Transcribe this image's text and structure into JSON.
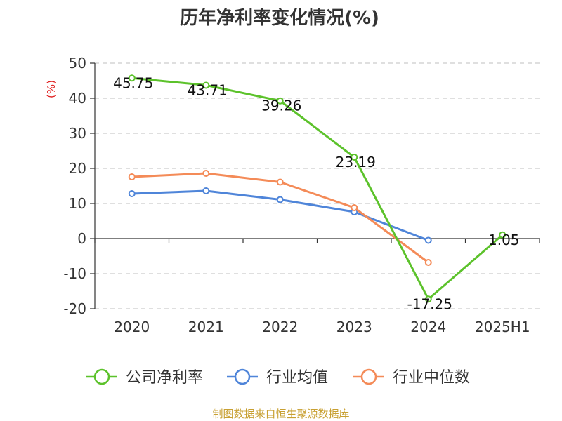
{
  "chart_data": {
    "type": "line",
    "title": "历年净利率变化情况(%)",
    "ylabel": "(%)",
    "xlabel": "",
    "categories": [
      "2020",
      "2021",
      "2022",
      "2023",
      "2024",
      "2025H1"
    ],
    "ylim": [
      -20,
      50
    ],
    "yticks": [
      50,
      40,
      30,
      20,
      10,
      0,
      -10,
      -20
    ],
    "grid": true,
    "legend_position": "bottom",
    "series": [
      {
        "name": "公司净利率",
        "color": "#5cc22b",
        "values": [
          45.75,
          43.71,
          39.26,
          23.19,
          -17.25,
          1.05
        ],
        "labels": [
          "45.75",
          "43.71",
          "39.26",
          "23.19",
          "-17.25",
          "1.05"
        ]
      },
      {
        "name": "行业均值",
        "color": "#4f85d9",
        "values": [
          12.8,
          13.6,
          11.1,
          7.6,
          -0.5,
          null
        ]
      },
      {
        "name": "行业中位数",
        "color": "#f48b58",
        "values": [
          17.6,
          18.6,
          16.1,
          8.8,
          -6.8,
          null
        ]
      }
    ]
  },
  "unit_color": "#e02020",
  "source_text": "制图数据来自恒生聚源数据库",
  "source_color": "#c8a032"
}
